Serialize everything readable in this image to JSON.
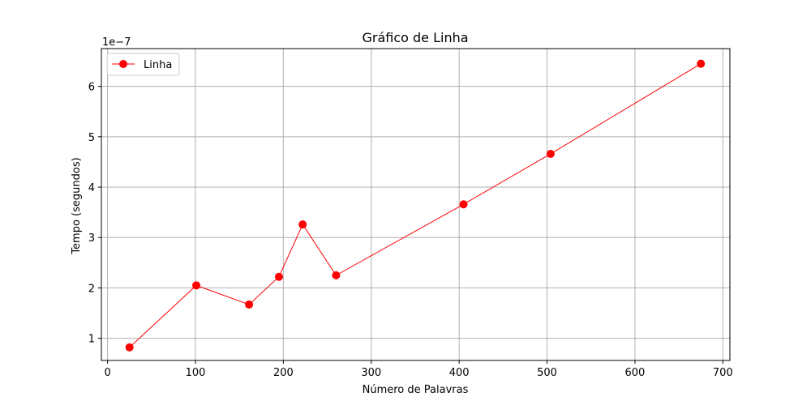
{
  "chart_data": {
    "type": "line",
    "title": "Gráfico de Linha",
    "xlabel": "Número de Palavras",
    "ylabel": "Tempo (segundos)",
    "y_offset_label": "1e−7",
    "xlim": [
      -7,
      708
    ],
    "ylim": [
      5.6e-08,
      6.75e-07
    ],
    "x_ticks": [
      0,
      100,
      200,
      300,
      400,
      500,
      600,
      700
    ],
    "x_tick_labels": [
      "0",
      "100",
      "200",
      "300",
      "400",
      "500",
      "600",
      "700"
    ],
    "y_ticks": [
      1e-07,
      2e-07,
      3e-07,
      4e-07,
      5e-07,
      6e-07
    ],
    "y_tick_labels": [
      "1",
      "2",
      "3",
      "4",
      "5",
      "6"
    ],
    "grid": true,
    "legend": {
      "position": "top-left",
      "entries": [
        "Linha"
      ]
    },
    "series": [
      {
        "name": "Linha",
        "color": "#ff0000",
        "marker": "circle",
        "x": [
          25,
          101,
          161,
          195,
          222,
          260,
          405,
          504,
          675
        ],
        "y": [
          8.2e-08,
          2.05e-07,
          1.67e-07,
          2.22e-07,
          3.26e-07,
          2.25e-07,
          3.66e-07,
          4.66e-07,
          6.45e-07
        ]
      }
    ]
  }
}
